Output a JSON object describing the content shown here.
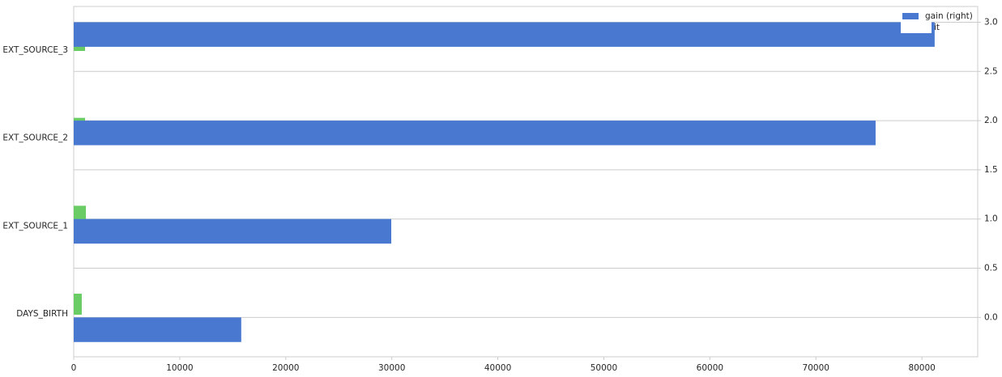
{
  "chart_data": {
    "type": "barh",
    "categories": [
      "DAYS_BIRTH",
      "EXT_SOURCE_1",
      "EXT_SOURCE_2",
      "EXT_SOURCE_3"
    ],
    "series": [
      {
        "name": "gain (right)",
        "color": "#4878cf",
        "axis": "y2",
        "values": [
          15800,
          29950,
          75630,
          81200
        ]
      },
      {
        "name": "it",
        "color": "#6acc65",
        "values": [
          760,
          1150,
          1070,
          1070
        ]
      }
    ],
    "xlim": [
      0,
      85260
    ],
    "xticks": [
      0,
      10000,
      20000,
      30000,
      40000,
      50000,
      60000,
      70000,
      80000
    ],
    "y2lim": [
      -0.4,
      3.16
    ],
    "y2ticks": [
      {
        "value": 0,
        "label": "0.0"
      },
      {
        "value": 0.5,
        "label": "0.5"
      },
      {
        "value": 1,
        "label": "1.0"
      },
      {
        "value": 1.5,
        "label": "1.5"
      },
      {
        "value": 2,
        "label": "2.0"
      },
      {
        "value": 2.5,
        "label": "2.5"
      },
      {
        "value": 3,
        "label": "3.0"
      }
    ],
    "grid": true
  }
}
